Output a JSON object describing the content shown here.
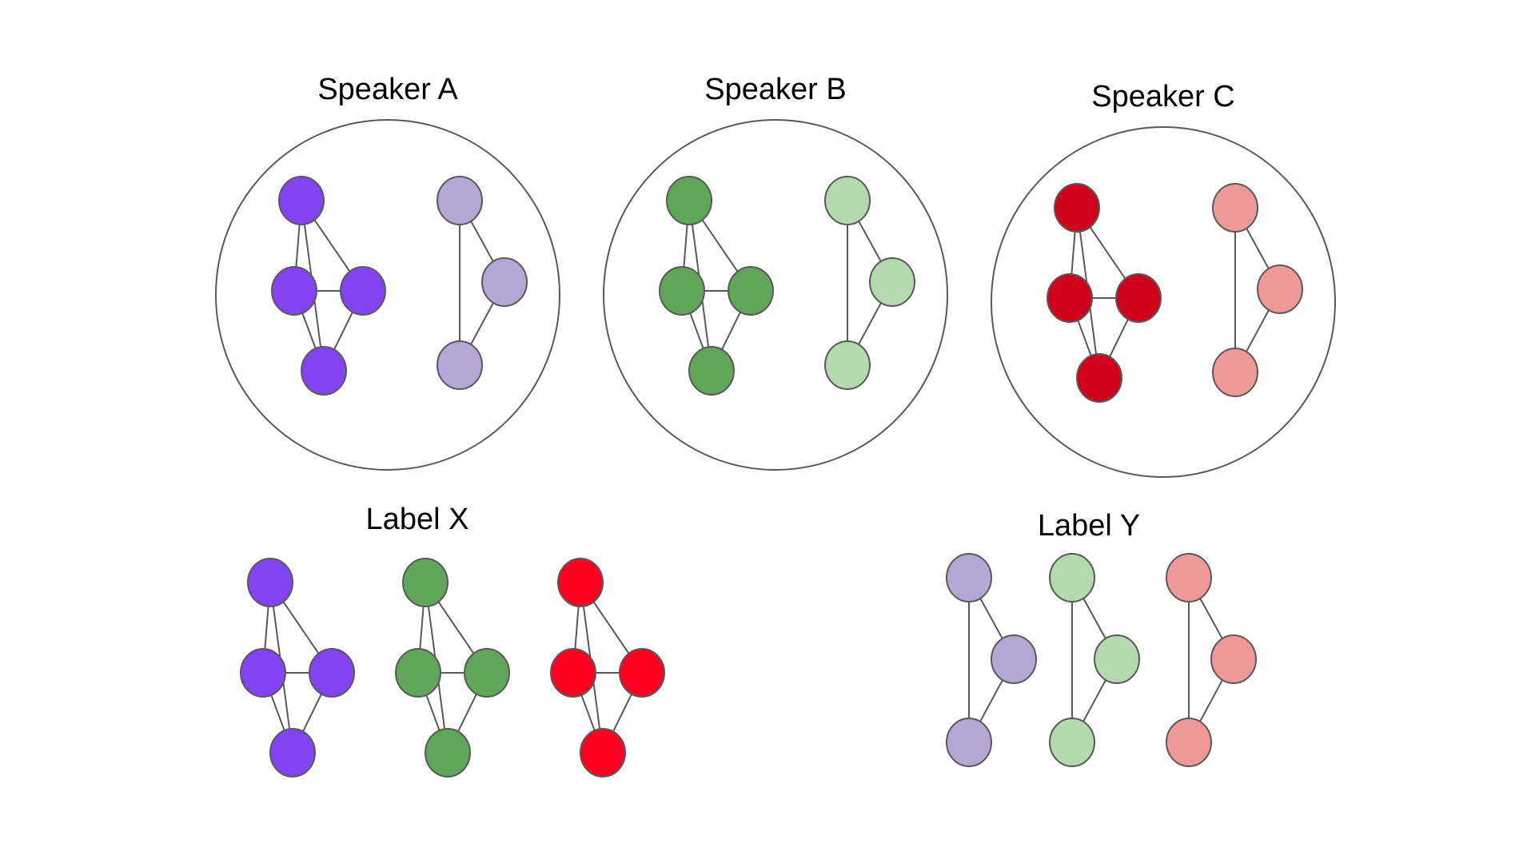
{
  "titles": {
    "speaker_a": "Speaker A",
    "speaker_b": "Speaker B",
    "speaker_c": "Speaker C",
    "label_x": "Label X",
    "label_y": "Label Y"
  },
  "colors": {
    "purple_dark": "#8443f2",
    "purple_light": "#b4a7d6",
    "green_dark": "#5fa658",
    "green_light": "#b5d9ae",
    "red_dark": "#d0021b",
    "red_bright": "#ff0022",
    "red_light": "#ef9899",
    "outline": "#595959"
  }
}
